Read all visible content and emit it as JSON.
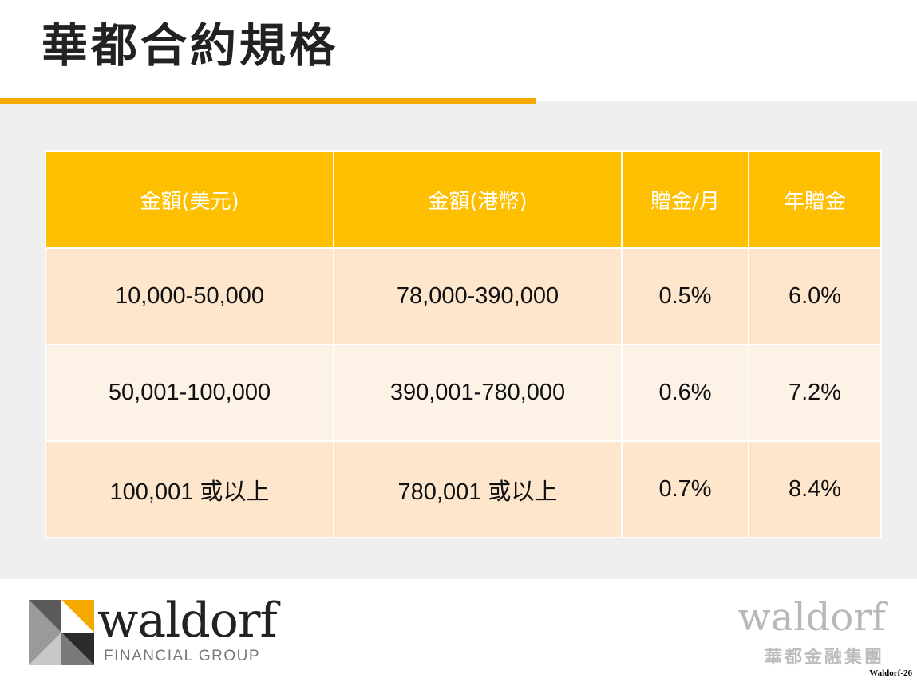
{
  "title": "華都合約規格",
  "table": {
    "headers": [
      "金額(美元)",
      "金額(港幣)",
      "贈金/月",
      "年贈金"
    ],
    "rows": [
      [
        "10,000-50,000",
        "78,000-390,000",
        "0.5%",
        "6.0%"
      ],
      [
        "50,001-100,000",
        "390,001-780,000",
        "0.6%",
        "7.2%"
      ],
      [
        "100,001 或以上",
        "780,001 或以上",
        "0.7%",
        "8.4%"
      ]
    ]
  },
  "logo": {
    "wordmark": "waldorf",
    "tagline": "FINANCIAL GROUP",
    "icon": "waldorf-logo-icon"
  },
  "watermark": {
    "wordmark": "waldorf",
    "chinese": "華都金融集團"
  },
  "page_label": "Waldorf-26",
  "colors": {
    "accent": "#f5a800",
    "header_bg": "#fdbf00",
    "row_odd": "#fde6cc",
    "row_even": "#fdf2e6",
    "band_bg": "#efefef"
  }
}
